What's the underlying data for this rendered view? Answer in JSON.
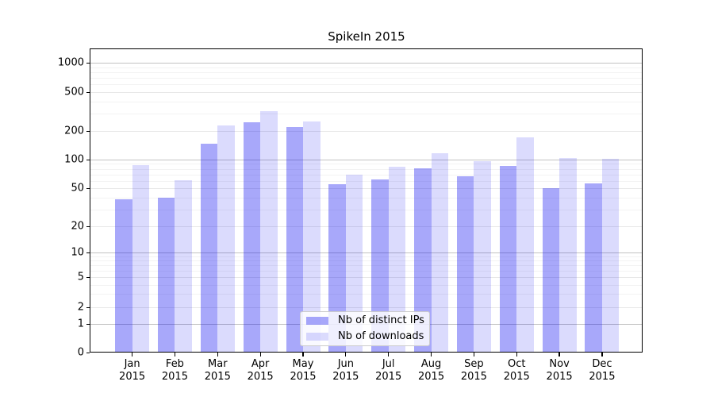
{
  "chart_data": {
    "type": "bar",
    "title": "SpikeIn 2015",
    "xlabel": "",
    "ylabel": "",
    "year_label": "2015",
    "categories": [
      "Jan",
      "Feb",
      "Mar",
      "Apr",
      "May",
      "Jun",
      "Jul",
      "Aug",
      "Sep",
      "Oct",
      "Nov",
      "Dec"
    ],
    "series": [
      {
        "name": "Nb of distinct IPs",
        "color": "rgba(0,0,240,0.34)",
        "values": [
          38,
          40,
          148,
          244,
          218,
          55,
          62,
          81,
          67,
          85,
          50,
          56
        ]
      },
      {
        "name": "Nb of downloads",
        "color": "rgba(0,0,240,0.14)",
        "values": [
          87,
          61,
          230,
          317,
          251,
          70,
          84,
          117,
          96,
          170,
          103,
          101
        ]
      }
    ],
    "y_axis": {
      "scale": "symlog",
      "ticks": [
        0,
        1,
        2,
        5,
        10,
        20,
        50,
        100,
        200,
        500,
        1000
      ],
      "ylim": [
        0,
        1400
      ]
    },
    "legend": {
      "position": "lower center",
      "entries": [
        "Nb of distinct IPs",
        "Nb of downloads"
      ]
    },
    "grid": true
  },
  "colors": {
    "major_grid": "#c2c2c2",
    "minor_grid": "#e8e8e8",
    "sub_grid": "#f3f3f3",
    "spine": "#000000",
    "background": "#ffffff"
  }
}
